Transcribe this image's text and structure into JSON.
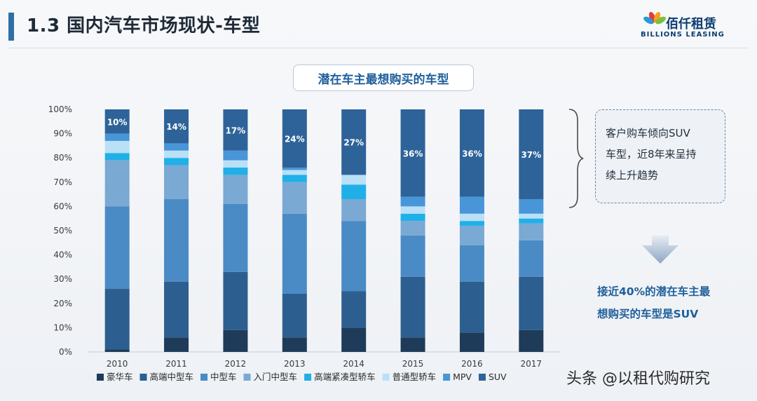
{
  "page": {
    "title": "1.3 国内汽车市场现状-车型",
    "logo": {
      "name_cn": "佰仟租赁",
      "name_en": "BILLIONS LEASING"
    },
    "note": [
      "客户购车倾向SUV",
      "车型，近8年来呈持",
      "续上升趋势"
    ],
    "conclusion": [
      "接近40%的潜在车主最",
      "想购买的车型是SUV"
    ],
    "watermark": "头条 @以租代购研究"
  },
  "chart_data": {
    "type": "bar",
    "stacked": true,
    "title": "潜在车主最想购买的车型",
    "categories": [
      "2010",
      "2011",
      "2012",
      "2013",
      "2014",
      "2015",
      "2016",
      "2017"
    ],
    "y_tick_labels": [
      "0%",
      "10%",
      "20%",
      "30%",
      "40%",
      "50%",
      "60%",
      "70%",
      "80%",
      "90%",
      "100%"
    ],
    "ylim": [
      0,
      100
    ],
    "grid": false,
    "legend_position": "bottom",
    "series": [
      {
        "name": "豪华车",
        "color": "#1f3b5a",
        "values": [
          1,
          6,
          9,
          6,
          10,
          6,
          8,
          9
        ]
      },
      {
        "name": "高端中型车",
        "color": "#2c5f8f",
        "values": [
          25,
          23,
          24,
          18,
          15,
          25,
          21,
          22
        ]
      },
      {
        "name": "中型车",
        "color": "#4a8bc6",
        "values": [
          34,
          34,
          28,
          33,
          29,
          17,
          15,
          15
        ]
      },
      {
        "name": "入门中型车",
        "color": "#7aa9d3",
        "values": [
          19,
          14,
          12,
          13,
          9,
          6,
          8,
          7
        ]
      },
      {
        "name": "高端紧凑型轿车",
        "color": "#20b0e8",
        "values": [
          3,
          3,
          3,
          3,
          6,
          3,
          2,
          2
        ]
      },
      {
        "name": "普通型轿车",
        "color": "#b9e0f6",
        "values": [
          5,
          3,
          3,
          2,
          4,
          3,
          3,
          2
        ]
      },
      {
        "name": "MPV",
        "color": "#4896d8",
        "values": [
          3,
          3,
          4,
          1,
          0,
          4,
          7,
          6
        ]
      },
      {
        "name": "SUV",
        "color": "#2e6399",
        "values": [
          10,
          14,
          17,
          24,
          27,
          36,
          36,
          37
        ]
      }
    ],
    "bar_labels": [
      "10%",
      "14%",
      "17%",
      "24%",
      "27%",
      "36%",
      "36%",
      "37%"
    ]
  }
}
